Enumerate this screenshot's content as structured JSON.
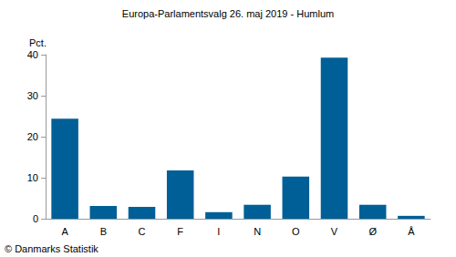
{
  "chart_data": {
    "type": "bar",
    "title": "Europa-Parlamentsvalg 26. maj 2019 - Humlum",
    "y_label": "Pct.",
    "categories": [
      "A",
      "B",
      "C",
      "F",
      "I",
      "N",
      "O",
      "V",
      "Ø",
      "Å"
    ],
    "values": [
      24.4,
      3.1,
      2.9,
      11.8,
      1.6,
      3.4,
      10.3,
      39.3,
      3.4,
      0.7
    ],
    "color": "#005f96",
    "ylim": [
      0,
      40
    ],
    "yticks": [
      0,
      10,
      20,
      30,
      40
    ],
    "grid": false,
    "annotations": [
      "© Danmarks Statistik"
    ]
  }
}
